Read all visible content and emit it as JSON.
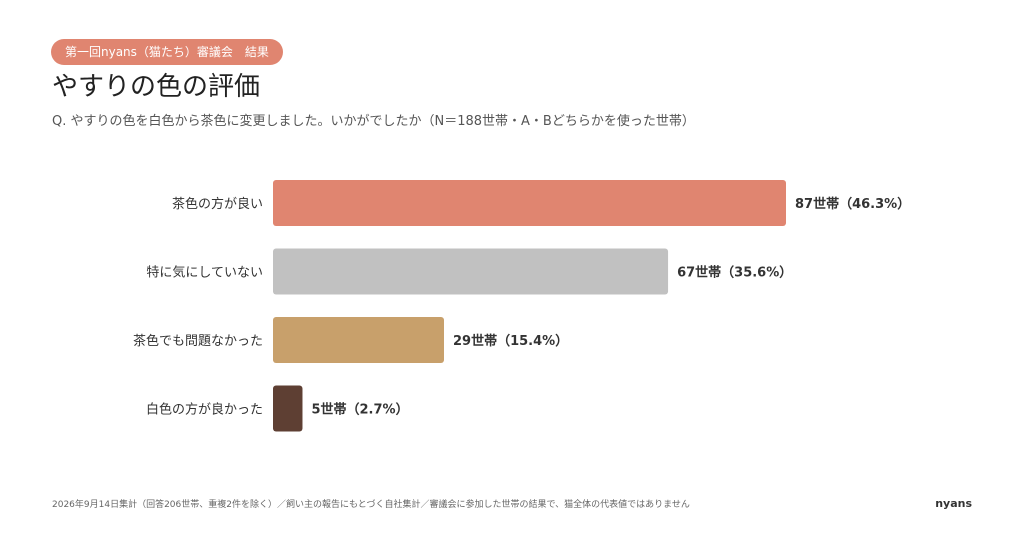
{
  "header": {
    "badge": "第一回nyans（猫たち）審議会　結果",
    "title": "やすりの色の評価",
    "subtitle": "Q. やすりの色を白色から茶色に変更しました。いかがでしたか（N＝188世帯・A・Bどちらかを使った世帯）"
  },
  "chart_data": {
    "type": "bar",
    "orientation": "horizontal",
    "categories": [
      "茶色の方が良い",
      "特に気にしていない",
      "茶色でも問題なかった",
      "白色の方が良かった"
    ],
    "values": [
      87,
      67,
      29,
      5
    ],
    "percents": [
      "46.3%",
      "35.6%",
      "15.4%",
      "2.7%"
    ],
    "value_labels": [
      "87世帯（46.3%）",
      "67世帯（35.6%）",
      "29世帯（15.4%）",
      "5世帯（2.7%）"
    ],
    "colors": [
      "#e08570",
      "#c1c1c1",
      "#c8a06b",
      "#5e3f33"
    ],
    "xlim": [
      0,
      87
    ],
    "grid": false,
    "legend": "none"
  },
  "footer": {
    "note": "2026年9月14日集計（回答206世帯、重複2件を除く）／飼い主の報告にもとづく自社集計／審議会に参加した世帯の結果で、猫全体の代表値ではありません",
    "brand": "nyans"
  }
}
